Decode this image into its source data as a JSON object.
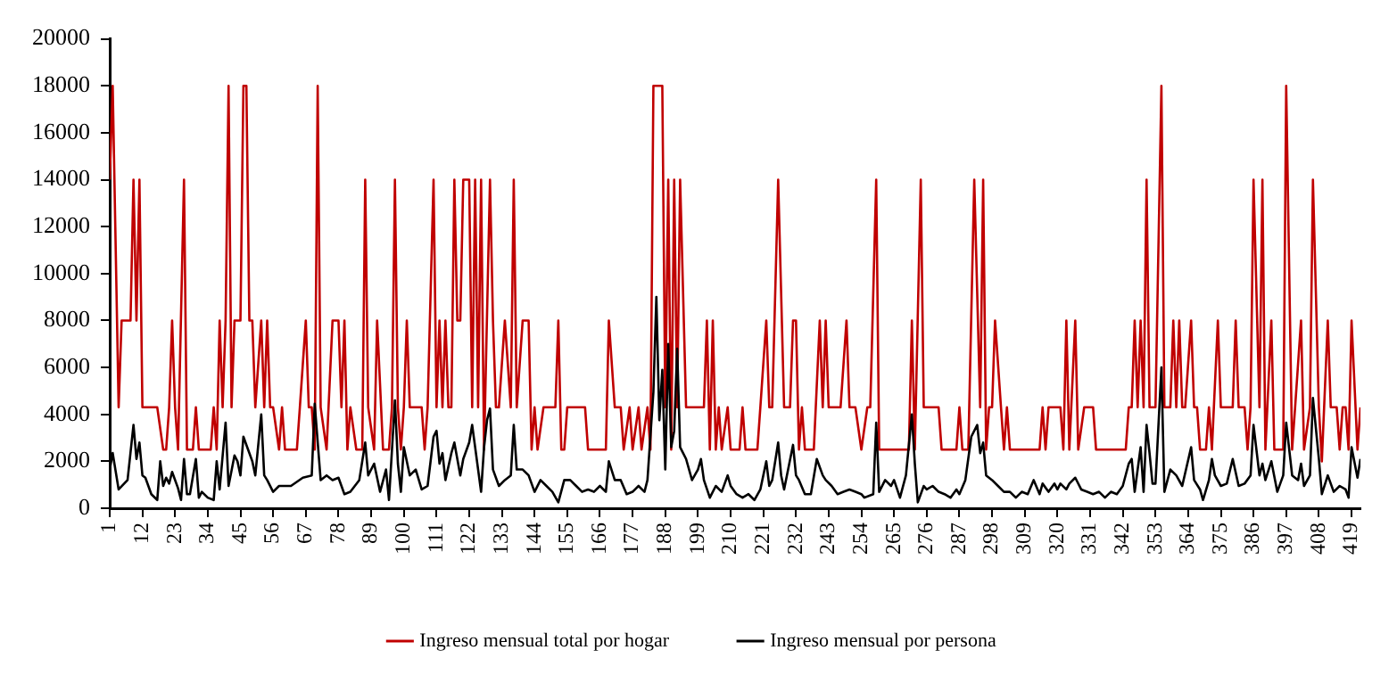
{
  "chart_data": {
    "type": "line",
    "legend": "bottom",
    "marker": "none",
    "xlim": [
      1,
      422
    ],
    "xticks": [
      1,
      12,
      23,
      34,
      45,
      56,
      67,
      78,
      89,
      100,
      111,
      122,
      133,
      144,
      155,
      166,
      177,
      188,
      199,
      210,
      221,
      232,
      243,
      254,
      265,
      276,
      287,
      298,
      309,
      320,
      331,
      342,
      353,
      364,
      375,
      386,
      397,
      408,
      419
    ],
    "ylim": [
      0,
      20000
    ],
    "yticks": [
      0,
      2000,
      4000,
      6000,
      8000,
      10000,
      12000,
      14000,
      16000,
      18000,
      20000
    ],
    "series": [
      {
        "name": "Ingreso mensual total por hogar",
        "color": "#c00000",
        "x": [
          1,
          2,
          4,
          5,
          8,
          9,
          10,
          11,
          12,
          17,
          19,
          20,
          21,
          22,
          23,
          24,
          26,
          27,
          29,
          30,
          31,
          35,
          36,
          37,
          38,
          39,
          40,
          41,
          42,
          43,
          45,
          46,
          47,
          48,
          49,
          50,
          52,
          53,
          54,
          55,
          56,
          58,
          59,
          60,
          64,
          65,
          67,
          68,
          69,
          70,
          71,
          72,
          74,
          76,
          78,
          79,
          80,
          81,
          82,
          84,
          86,
          87,
          88,
          90,
          91,
          93,
          95,
          96,
          97,
          98,
          99,
          100,
          101,
          102,
          106,
          107,
          108,
          110,
          111,
          112,
          113,
          114,
          115,
          116,
          117,
          118,
          119,
          120,
          122,
          123,
          124,
          125,
          126,
          127,
          129,
          130,
          131,
          132,
          134,
          136,
          137,
          138,
          140,
          142,
          143,
          144,
          145,
          147,
          151,
          152,
          153,
          154,
          155,
          161,
          162,
          168,
          169,
          171,
          173,
          174,
          176,
          177,
          179,
          180,
          182,
          183,
          184,
          187,
          188,
          189,
          190,
          191,
          192,
          193,
          195,
          201,
          202,
          203,
          204,
          205,
          206,
          207,
          209,
          210,
          213,
          214,
          215,
          219,
          220,
          222,
          223,
          224,
          226,
          228,
          230,
          231,
          232,
          233,
          234,
          235,
          238,
          240,
          241,
          242,
          243,
          247,
          249,
          250,
          252,
          254,
          256,
          257,
          259,
          260,
          270,
          271,
          272,
          274,
          275,
          280,
          281,
          286,
          287,
          288,
          290,
          292,
          294,
          295,
          296,
          297,
          298,
          299,
          301,
          302,
          303,
          304,
          314,
          315,
          316,
          317,
          321,
          322,
          323,
          324,
          326,
          327,
          329,
          332,
          333,
          343,
          344,
          345,
          346,
          347,
          348,
          349,
          350,
          351,
          353,
          355,
          356,
          358,
          359,
          360,
          361,
          362,
          363,
          365,
          366,
          367,
          368,
          370,
          371,
          372,
          374,
          375,
          379,
          380,
          381,
          383,
          384,
          385,
          386,
          388,
          389,
          390,
          392,
          393,
          396,
          397,
          399,
          400,
          402,
          403,
          405,
          406,
          408,
          409,
          411,
          412,
          414,
          415,
          416,
          417,
          418,
          419,
          421,
          422
        ],
        "values": [
          14000,
          18000,
          4300,
          8000,
          8000,
          14000,
          8000,
          14000,
          4300,
          4300,
          2500,
          2500,
          4300,
          8000,
          4300,
          2500,
          14000,
          2500,
          2500,
          4300,
          2500,
          2500,
          4300,
          2500,
          8000,
          4300,
          8000,
          18000,
          4300,
          8000,
          8000,
          18000,
          18000,
          8000,
          8000,
          4300,
          8000,
          4300,
          8000,
          4300,
          4300,
          2500,
          4300,
          2500,
          2500,
          4300,
          8000,
          4300,
          4300,
          2500,
          18000,
          4300,
          2500,
          8000,
          8000,
          4300,
          8000,
          2500,
          4300,
          2500,
          2500,
          14000,
          4300,
          2500,
          8000,
          2500,
          2500,
          4300,
          14000,
          4300,
          2500,
          4300,
          8000,
          4300,
          4300,
          2500,
          4300,
          14000,
          4300,
          8000,
          4300,
          8000,
          4300,
          4300,
          14000,
          8000,
          8000,
          14000,
          14000,
          4300,
          14000,
          4300,
          14000,
          2500,
          14000,
          8000,
          4300,
          4300,
          8000,
          4300,
          14000,
          4300,
          8000,
          8000,
          2500,
          4300,
          2500,
          4300,
          4300,
          8000,
          2500,
          2500,
          4300,
          4300,
          2500,
          2500,
          8000,
          4300,
          4300,
          2500,
          4300,
          2500,
          4300,
          2500,
          4300,
          2500,
          18000,
          18000,
          4300,
          14000,
          2500,
          14000,
          4300,
          14000,
          4300,
          4300,
          8000,
          2500,
          8000,
          2500,
          4300,
          2500,
          4300,
          2500,
          2500,
          4300,
          2500,
          2500,
          4300,
          8000,
          4300,
          4300,
          14000,
          4300,
          4300,
          8000,
          8000,
          2500,
          4300,
          2500,
          2500,
          8000,
          4300,
          8000,
          4300,
          4300,
          8000,
          4300,
          4300,
          2500,
          4300,
          4300,
          14000,
          2500,
          2500,
          8000,
          2500,
          14000,
          4300,
          4300,
          2500,
          2500,
          4300,
          2500,
          2500,
          14000,
          4300,
          14000,
          2500,
          4300,
          4300,
          8000,
          4300,
          2500,
          4300,
          2500,
          2500,
          4300,
          2500,
          4300,
          4300,
          2500,
          8000,
          2500,
          8000,
          2500,
          4300,
          4300,
          2500,
          2500,
          4300,
          4300,
          8000,
          4300,
          8000,
          4300,
          14000,
          4300,
          4300,
          18000,
          4300,
          4300,
          8000,
          4300,
          8000,
          4300,
          4300,
          8000,
          4300,
          4300,
          2500,
          2500,
          4300,
          2500,
          8000,
          4300,
          4300,
          8000,
          4300,
          4300,
          2500,
          4300,
          14000,
          4300,
          14000,
          2500,
          8000,
          2500,
          2500,
          18000,
          2500,
          4300,
          8000,
          2500,
          4300,
          14000,
          4300,
          2000,
          8000,
          4300,
          4300,
          2500,
          4300,
          4300,
          2500,
          8000,
          2500,
          4300
        ]
      },
      {
        "name": "Ingreso mensual por persona",
        "color": "#000000",
        "x": [
          1,
          2,
          4,
          7,
          9,
          10,
          11,
          12,
          13,
          15,
          17,
          18,
          19,
          20,
          21,
          22,
          24,
          25,
          26,
          27,
          28,
          30,
          31,
          32,
          34,
          36,
          37,
          38,
          40,
          41,
          43,
          44,
          45,
          46,
          47,
          49,
          50,
          52,
          53,
          54,
          56,
          58,
          62,
          66,
          69,
          70,
          72,
          74,
          76,
          78,
          80,
          82,
          85,
          87,
          88,
          90,
          92,
          94,
          95,
          97,
          98,
          99,
          100,
          102,
          104,
          106,
          108,
          110,
          111,
          112,
          113,
          114,
          116,
          117,
          119,
          120,
          122,
          123,
          125,
          126,
          127,
          128,
          129,
          130,
          132,
          134,
          136,
          137,
          138,
          140,
          142,
          144,
          146,
          148,
          150,
          152,
          154,
          156,
          158,
          160,
          162,
          164,
          166,
          168,
          169,
          171,
          173,
          175,
          177,
          179,
          181,
          182,
          184,
          185,
          186,
          187,
          188,
          189,
          190,
          191,
          192,
          193,
          195,
          197,
          199,
          200,
          201,
          203,
          205,
          207,
          209,
          210,
          212,
          214,
          216,
          218,
          220,
          222,
          223,
          224,
          226,
          227,
          228,
          231,
          232,
          233,
          235,
          237,
          239,
          241,
          242,
          244,
          246,
          248,
          250,
          252,
          254,
          255,
          258,
          259,
          260,
          262,
          264,
          265,
          267,
          269,
          271,
          272,
          273,
          275,
          276,
          278,
          280,
          282,
          284,
          286,
          287,
          289,
          291,
          293,
          294,
          295,
          296,
          298,
          300,
          302,
          304,
          306,
          308,
          310,
          312,
          314,
          315,
          317,
          319,
          320,
          321,
          323,
          324,
          326,
          328,
          330,
          332,
          334,
          336,
          338,
          340,
          342,
          344,
          345,
          346,
          348,
          349,
          350,
          351,
          352,
          353,
          355,
          356,
          358,
          360,
          362,
          365,
          366,
          368,
          369,
          371,
          372,
          373,
          375,
          377,
          379,
          381,
          383,
          385,
          386,
          388,
          389,
          390,
          392,
          394,
          396,
          397,
          399,
          401,
          402,
          403,
          405,
          406,
          408,
          409,
          411,
          413,
          415,
          417,
          418,
          419,
          421,
          422
        ],
        "values": [
          1650,
          2350,
          800,
          1200,
          3550,
          2100,
          2800,
          1400,
          1300,
          600,
          350,
          2000,
          950,
          1300,
          1050,
          1550,
          850,
          350,
          2100,
          600,
          600,
          2100,
          450,
          700,
          450,
          350,
          2000,
          800,
          3650,
          950,
          2250,
          2000,
          1400,
          3050,
          2700,
          2000,
          1400,
          4000,
          1400,
          1200,
          700,
          950,
          950,
          1300,
          1400,
          4450,
          1200,
          1400,
          1200,
          1300,
          600,
          700,
          1200,
          2800,
          1400,
          1900,
          700,
          1650,
          350,
          4600,
          1900,
          700,
          2600,
          1400,
          1650,
          800,
          950,
          3050,
          3300,
          1900,
          2350,
          1200,
          2350,
          2800,
          1400,
          2100,
          2800,
          3550,
          1650,
          700,
          2600,
          3750,
          4250,
          1650,
          950,
          1200,
          1400,
          3550,
          1650,
          1650,
          1400,
          700,
          1200,
          950,
          700,
          250,
          1200,
          1200,
          950,
          700,
          800,
          700,
          950,
          700,
          2000,
          1200,
          1200,
          600,
          700,
          950,
          700,
          1200,
          4950,
          9000,
          3750,
          5900,
          1650,
          7000,
          2600,
          3300,
          6800,
          2600,
          2100,
          1200,
          1650,
          2100,
          1200,
          450,
          950,
          700,
          1400,
          950,
          600,
          450,
          600,
          350,
          800,
          2000,
          950,
          1200,
          2800,
          1400,
          800,
          2700,
          1400,
          1200,
          600,
          600,
          2100,
          1400,
          1200,
          950,
          600,
          700,
          800,
          700,
          600,
          450,
          600,
          3650,
          700,
          1200,
          950,
          1200,
          450,
          1400,
          4000,
          1900,
          250,
          950,
          800,
          950,
          700,
          600,
          450,
          800,
          600,
          1200,
          3050,
          3550,
          2350,
          2800,
          1400,
          1200,
          950,
          700,
          700,
          450,
          700,
          600,
          1200,
          600,
          1050,
          700,
          1050,
          800,
          1050,
          800,
          1050,
          1300,
          800,
          700,
          600,
          700,
          450,
          700,
          600,
          950,
          1900,
          2100,
          700,
          2600,
          700,
          3550,
          2350,
          1050,
          1050,
          6000,
          700,
          1650,
          1400,
          950,
          2600,
          1200,
          800,
          350,
          1200,
          2100,
          1400,
          950,
          1050,
          2100,
          950,
          1050,
          1400,
          3550,
          1400,
          1900,
          1200,
          2000,
          700,
          1400,
          3650,
          1400,
          1200,
          1900,
          950,
          1400,
          4700,
          2100,
          600,
          1400,
          700,
          950,
          800,
          450,
          2600,
          1300,
          2100
        ]
      }
    ]
  }
}
